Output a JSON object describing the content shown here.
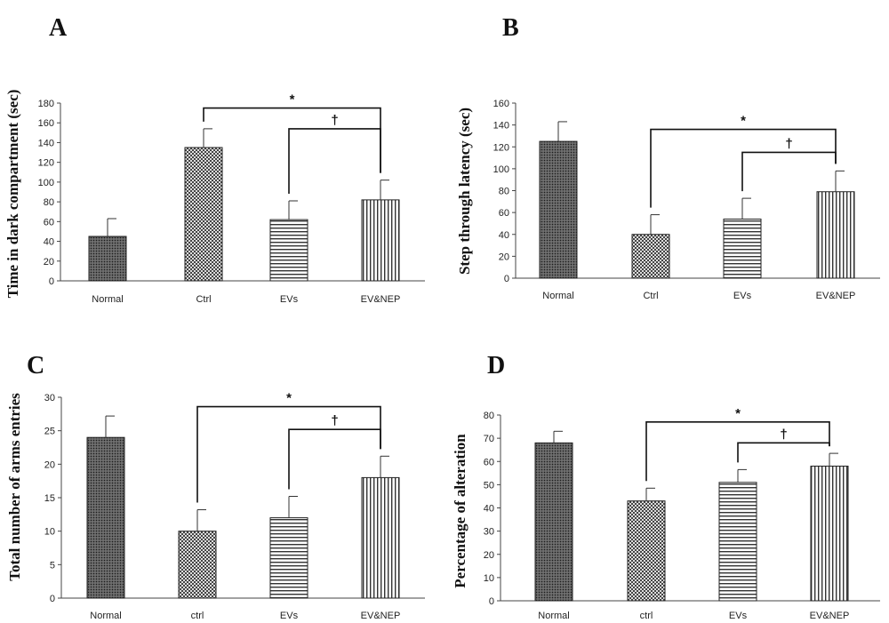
{
  "patterns": {
    "Normal": "dense-dots",
    "Ctrl": "checker",
    "EVs": "horizontal-lines",
    "EV&NEP": "vertical-lines"
  },
  "chart_data": [
    {
      "panel": "A",
      "type": "bar",
      "ylabel": "Time in dark compartment  (sec)",
      "ylim": [
        0,
        180
      ],
      "yticks": [
        0,
        20,
        40,
        60,
        80,
        100,
        120,
        140,
        160,
        180
      ],
      "categories": [
        "Normal",
        "Ctrl",
        "EVs",
        "EV&NEP"
      ],
      "values": [
        45,
        135,
        62,
        82
      ],
      "errors": [
        18,
        19,
        19,
        20
      ],
      "significance": [
        {
          "from": 1,
          "to": 3,
          "symbol": "*",
          "level": 175
        },
        {
          "from": 2,
          "to": 3,
          "symbol": "†",
          "level": 154
        }
      ]
    },
    {
      "panel": "B",
      "type": "bar",
      "ylabel": "Step through latency (sec)",
      "ylim": [
        0,
        160
      ],
      "yticks": [
        0,
        20,
        40,
        60,
        80,
        100,
        120,
        140,
        160
      ],
      "categories": [
        "Normal",
        "Ctrl",
        "EVs",
        "EV&NEP"
      ],
      "values": [
        125,
        40,
        54,
        79
      ],
      "errors": [
        18,
        18,
        19,
        19
      ],
      "significance": [
        {
          "from": 1,
          "to": 3,
          "symbol": "*",
          "level": 136
        },
        {
          "from": 2,
          "to": 3,
          "symbol": "†",
          "level": 115
        }
      ]
    },
    {
      "panel": "C",
      "type": "bar",
      "ylabel": "Total number of  arms entries",
      "ylim": [
        0,
        30
      ],
      "yticks": [
        0,
        5,
        10,
        15,
        20,
        25,
        30
      ],
      "categories": [
        "Normal",
        "ctrl",
        "EVs",
        "EV&NEP"
      ],
      "values": [
        24,
        10,
        12,
        18
      ],
      "errors": [
        3.2,
        3.2,
        3.2,
        3.2
      ],
      "significance": [
        {
          "from": 1,
          "to": 3,
          "symbol": "*",
          "level": 28.6
        },
        {
          "from": 2,
          "to": 3,
          "symbol": "†",
          "level": 25.2
        }
      ]
    },
    {
      "panel": "D",
      "type": "bar",
      "ylabel": "Percentage of alteration",
      "ylim": [
        0,
        80
      ],
      "yticks": [
        0,
        10,
        20,
        30,
        40,
        50,
        60,
        70,
        80
      ],
      "categories": [
        "Normal",
        "ctrl",
        "EVs",
        "EV&NEP"
      ],
      "values": [
        68,
        43,
        51,
        58
      ],
      "errors": [
        5,
        5.5,
        5.5,
        5.5
      ],
      "significance": [
        {
          "from": 1,
          "to": 3,
          "symbol": "*",
          "level": 77
        },
        {
          "from": 2,
          "to": 3,
          "symbol": "†",
          "level": 68
        }
      ]
    }
  ]
}
